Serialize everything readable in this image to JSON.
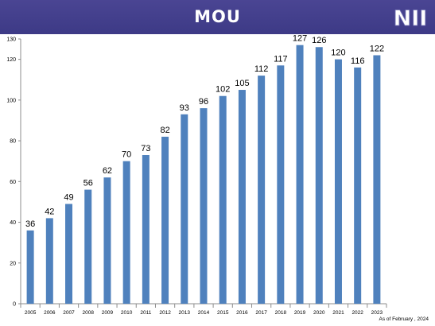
{
  "header": {
    "title": "MOU",
    "logo_text": "NII",
    "background_color": "#3f3b88"
  },
  "footnote": "As of February , 2024",
  "chart_data": {
    "type": "bar",
    "title": "MOU",
    "categories": [
      "2005",
      "2006",
      "2007",
      "2008",
      "2009",
      "2010",
      "2011",
      "2012",
      "2013",
      "2014",
      "2015",
      "2016",
      "2017",
      "2018",
      "2019",
      "2020",
      "2021",
      "2022",
      "2023"
    ],
    "values": [
      36,
      42,
      49,
      56,
      62,
      70,
      73,
      82,
      93,
      96,
      102,
      105,
      112,
      117,
      127,
      126,
      120,
      116,
      122
    ],
    "ylim": [
      0,
      130
    ],
    "yticks": [
      0,
      20,
      40,
      60,
      80,
      100,
      120,
      130
    ],
    "xlabel": "",
    "ylabel": "",
    "grid": false,
    "legend": "none",
    "bar_color": "#4f81bd",
    "data_labels": true
  }
}
